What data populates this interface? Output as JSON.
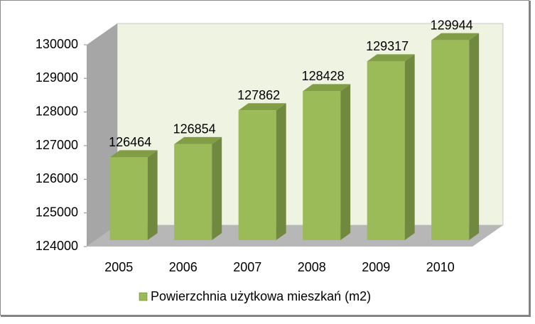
{
  "chart_data": {
    "type": "bar3d",
    "categories": [
      "2005",
      "2006",
      "2007",
      "2008",
      "2009",
      "2010"
    ],
    "series": [
      {
        "name": "Powierzchnia użytkowa mieszkań (m2)",
        "color": "#9bbb59",
        "values": [
          126464,
          126854,
          127862,
          128428,
          129317,
          129944
        ]
      }
    ],
    "ylim": [
      124000,
      130000
    ],
    "yticks": [
      124000,
      125000,
      126000,
      127000,
      128000,
      129000,
      130000
    ],
    "legend": "bottom"
  }
}
